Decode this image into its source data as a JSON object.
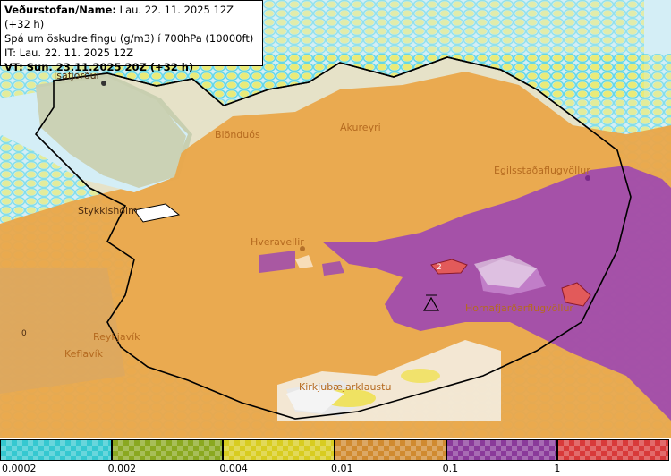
{
  "info": {
    "line1_label": "Veðurstofan/Name:",
    "line1_value": "Lau. 22. 11. 2025 12Z (+32 h)",
    "line2": "Spá um öskudreifingu (g/m3) í 700hPa (10000ft)",
    "line3": "IT: Lau. 22. 11. 2025 12Z",
    "line4": "VT: Sun. 23.11.2025 20Z (+32 h)"
  },
  "places": {
    "isafjordur": "Ísafjörður",
    "blonduos": "Blönduós",
    "akureyri": "Akureyri",
    "egilsstadir": "Egilsstaðaflugvöllur",
    "stykkisholmur": "Stykkishólm",
    "hveravellir": "Hveravellir",
    "reykjavik": "Reykjavík",
    "keflavik": "Keflavík",
    "hornafjordur": "Hornafjarðarflugvöllur",
    "kirkjubaejar": "Kirkjubæjarklaustu",
    "contour_value": "2",
    "coast_value": "0"
  },
  "legend": {
    "labels": [
      "0.0002",
      "0.002",
      "0.004",
      "0.01",
      "0.1",
      "1"
    ],
    "colors": [
      "#35c8d0",
      "#8aa820",
      "#d8cc20",
      "#d08a30",
      "#8a3a9a",
      "#d83a3a"
    ]
  }
}
